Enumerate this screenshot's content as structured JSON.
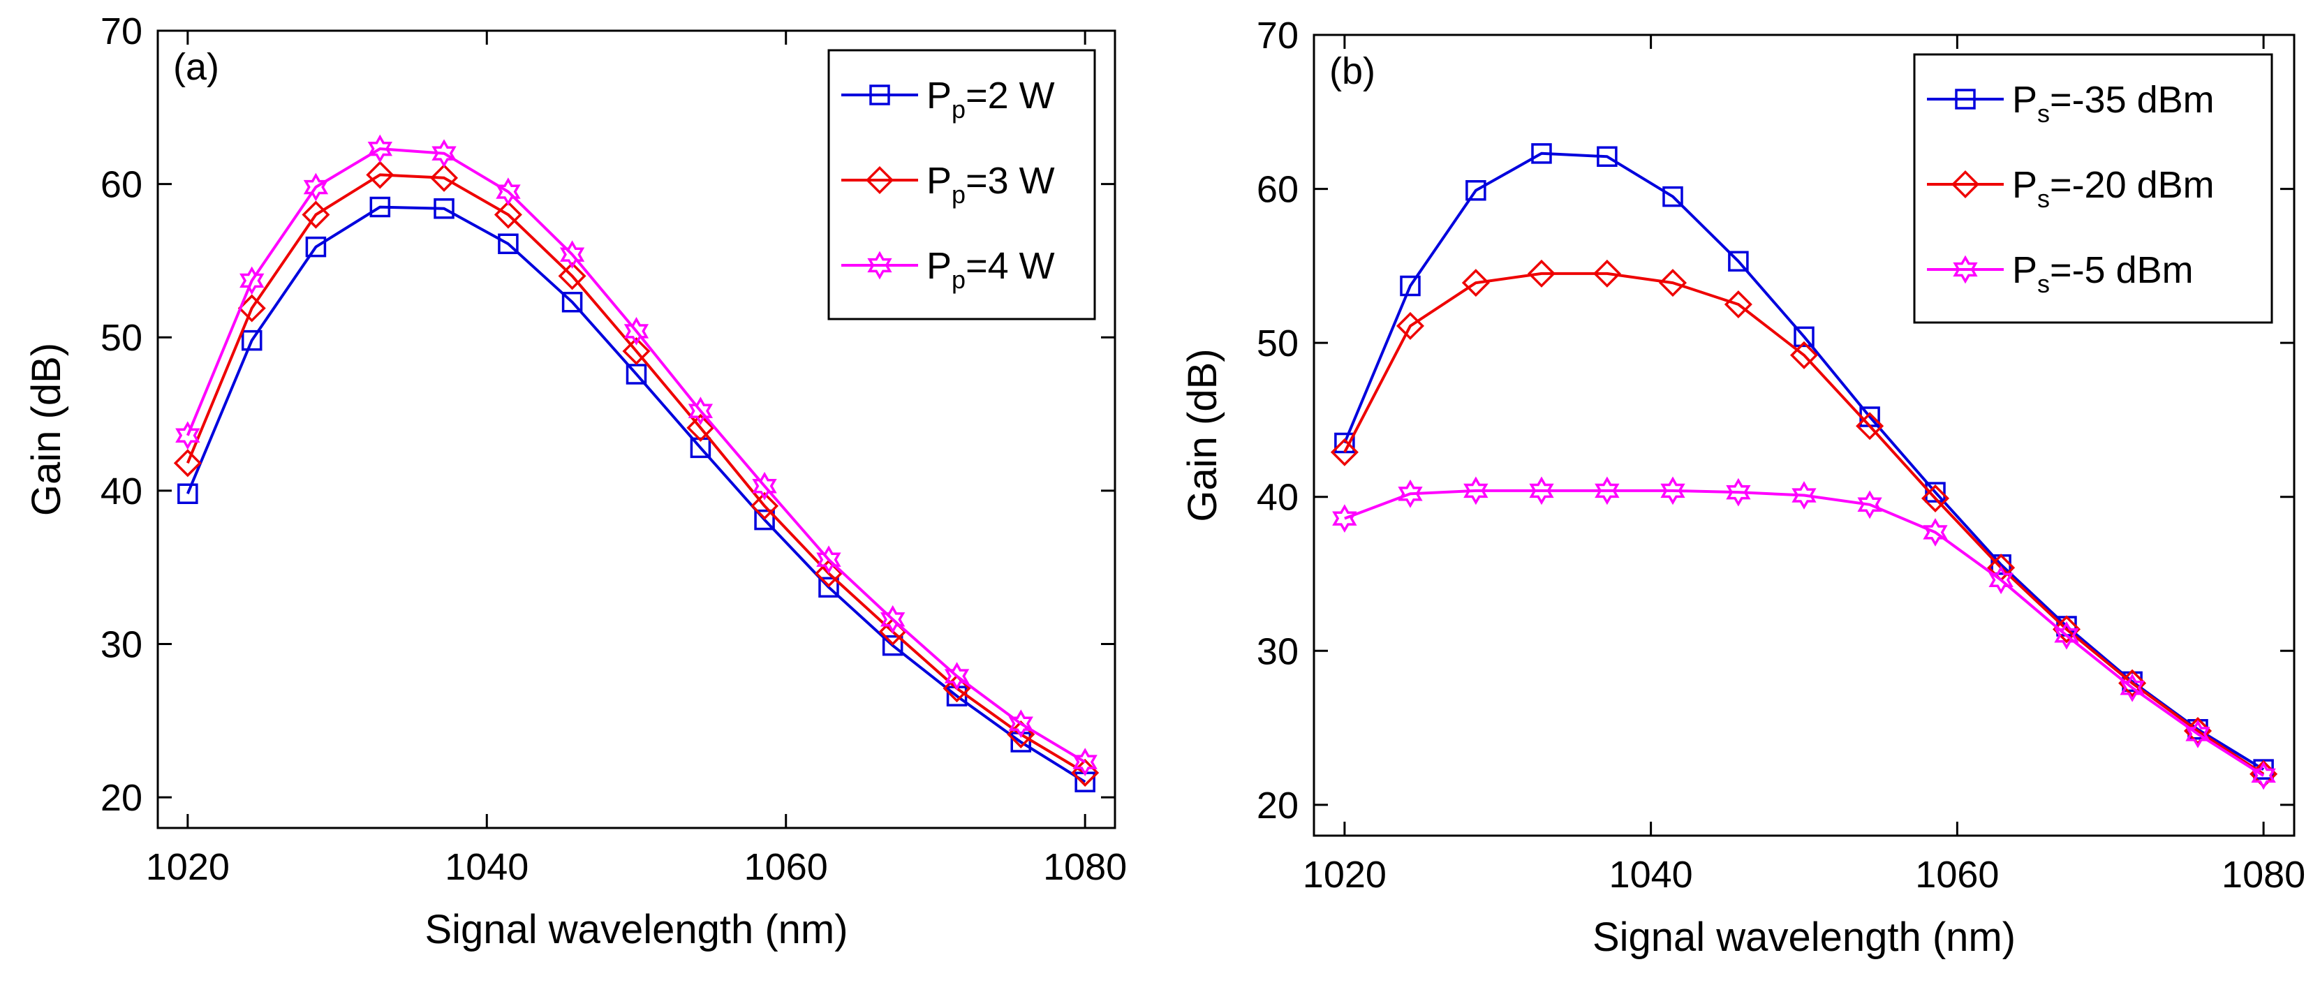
{
  "chart_data": [
    {
      "type": "line",
      "panel_label": "(a)",
      "xlabel": "Signal wavelength (nm)",
      "ylabel": "Gain (dB)",
      "xlim": [
        1018,
        1082
      ],
      "ylim": [
        18,
        70
      ],
      "xticks": [
        1020,
        1040,
        1060,
        1080
      ],
      "yticks": [
        20,
        30,
        40,
        50,
        60,
        70
      ],
      "legend_position": "top-right",
      "x": [
        1020,
        1024.29,
        1028.57,
        1032.86,
        1037.14,
        1041.43,
        1045.71,
        1050,
        1054.29,
        1058.57,
        1062.86,
        1067.14,
        1071.43,
        1075.71,
        1080
      ],
      "series": [
        {
          "name_main": "P",
          "name_sub": "p",
          "name_rest": "=2 W",
          "color": "#0000dd",
          "marker": "square",
          "values": [
            39.8,
            49.8,
            55.9,
            58.5,
            58.4,
            56.1,
            52.3,
            47.6,
            42.8,
            38.1,
            33.7,
            29.9,
            26.6,
            23.6,
            21.0
          ]
        },
        {
          "name_main": "P",
          "name_sub": "p",
          "name_rest": "=3 W",
          "color": "#ee0000",
          "marker": "diamond",
          "values": [
            41.8,
            51.9,
            58.0,
            60.6,
            60.4,
            58.0,
            54.0,
            49.1,
            44.1,
            39.0,
            34.6,
            30.8,
            27.1,
            24.1,
            21.6
          ]
        },
        {
          "name_main": "P",
          "name_sub": "p",
          "name_rest": "=4 W",
          "color": "#ff00ff",
          "marker": "star",
          "values": [
            43.6,
            53.7,
            59.8,
            62.3,
            62.0,
            59.5,
            55.4,
            50.4,
            45.2,
            40.3,
            35.5,
            31.6,
            27.9,
            24.8,
            22.3
          ]
        }
      ]
    },
    {
      "type": "line",
      "panel_label": "(b)",
      "xlabel": "Signal wavelength (nm)",
      "ylabel": "Gain (dB)",
      "xlim": [
        1018,
        1082
      ],
      "ylim": [
        18,
        70
      ],
      "xticks": [
        1020,
        1040,
        1060,
        1080
      ],
      "yticks": [
        20,
        30,
        40,
        50,
        60,
        70
      ],
      "legend_position": "top-right",
      "x": [
        1020,
        1024.29,
        1028.57,
        1032.86,
        1037.14,
        1041.43,
        1045.71,
        1050,
        1054.29,
        1058.57,
        1062.86,
        1067.14,
        1071.43,
        1075.71,
        1080
      ],
      "series": [
        {
          "name_main": "P",
          "name_sub": "s",
          "name_rest": "=-35 dBm",
          "color": "#0000dd",
          "marker": "square",
          "values": [
            43.5,
            53.7,
            59.9,
            62.3,
            62.1,
            59.5,
            55.3,
            50.4,
            45.2,
            40.3,
            35.6,
            31.6,
            28.0,
            24.9,
            22.3
          ]
        },
        {
          "name_main": "P",
          "name_sub": "s",
          "name_rest": "=-20 dBm",
          "color": "#ee0000",
          "marker": "diamond",
          "values": [
            42.9,
            51.1,
            53.9,
            54.5,
            54.5,
            53.9,
            52.5,
            49.2,
            44.6,
            39.9,
            35.4,
            31.4,
            27.9,
            24.8,
            22.0
          ]
        },
        {
          "name_main": "P",
          "name_sub": "s",
          "name_rest": "=-5 dBm",
          "color": "#ff00ff",
          "marker": "star",
          "values": [
            38.6,
            40.2,
            40.4,
            40.4,
            40.4,
            40.4,
            40.3,
            40.1,
            39.5,
            37.7,
            34.6,
            31.0,
            27.6,
            24.6,
            21.9
          ]
        }
      ]
    }
  ]
}
